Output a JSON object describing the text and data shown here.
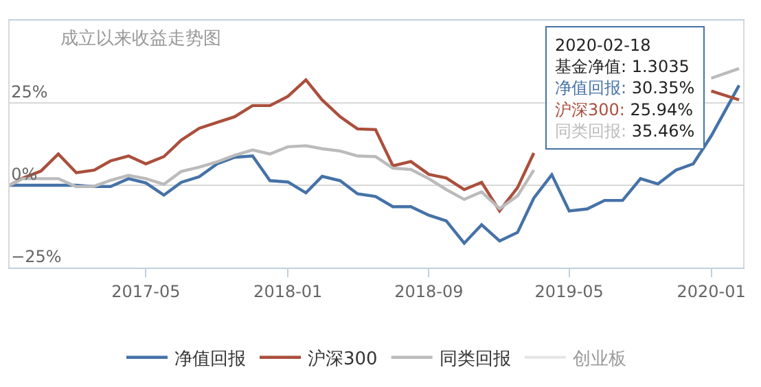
{
  "chart_data": {
    "type": "line",
    "title": "成立以来收益走势图",
    "x": [
      "2016-09-08",
      "2016-10-01",
      "2016-11-01",
      "2016-12-01",
      "2017-01-01",
      "2017-02-01",
      "2017-03-01",
      "2017-04-01",
      "2017-05-01",
      "2017-06-01",
      "2017-07-01",
      "2017-08-01",
      "2017-09-01",
      "2017-10-01",
      "2017-11-01",
      "2017-12-01",
      "2018-01-01",
      "2018-02-01",
      "2018-03-01",
      "2018-04-01",
      "2018-05-01",
      "2018-06-01",
      "2018-07-01",
      "2018-08-01",
      "2018-09-01",
      "2018-10-01",
      "2018-11-01",
      "2018-12-01",
      "2019-01-01",
      "2019-02-01",
      "2019-03-01",
      "2019-04-01",
      "2019-05-01",
      "2019-06-01",
      "2019-07-01",
      "2019-08-01",
      "2019-09-01",
      "2019-10-01",
      "2019-11-01",
      "2019-12-01",
      "2020-01-01",
      "2020-02-18"
    ],
    "series": [
      {
        "name": "净值回报",
        "color": "#4572a7",
        "values": [
          0,
          0,
          0,
          0,
          0,
          -0.4,
          -0.4,
          2,
          0.7,
          -3,
          0.9,
          2.6,
          6.5,
          8.5,
          8.9,
          1.4,
          1,
          -2.3,
          2.7,
          1.4,
          -2.6,
          -3.4,
          -6.5,
          -6.5,
          -9.1,
          -10.8,
          -17.6,
          -12,
          -16.9,
          -14.3,
          -3.9,
          3.2,
          -7.8,
          -7.2,
          -4.6,
          -4.6,
          2,
          0.4,
          4.6,
          6.5,
          15,
          30.35
        ]
      },
      {
        "name": "沪深300",
        "color": "#aa4f3c",
        "values": [
          0,
          2.2,
          4.3,
          9.5,
          3.8,
          4.6,
          7.4,
          8.9,
          6.5,
          8.7,
          13.7,
          17.3,
          19.1,
          20.8,
          24.2,
          24.2,
          27,
          32,
          25.9,
          20.8,
          17.1,
          16.9,
          5.9,
          7.2,
          3.3,
          2.2,
          -1.3,
          0.9,
          -7.8,
          -0.7,
          9.8,
          null,
          null,
          null,
          null,
          null,
          null,
          null,
          null,
          null,
          28.6,
          25.94
        ]
      },
      {
        "name": "同类回报",
        "color": "#bbbbbb",
        "values": [
          0,
          2,
          2,
          2,
          -0.4,
          -0.3,
          1.5,
          3,
          2,
          0.3,
          4.2,
          5.5,
          7.1,
          9.1,
          10.7,
          9.5,
          11.7,
          12,
          11.1,
          10.4,
          8.9,
          8.7,
          5.2,
          4.8,
          2,
          -1.3,
          -4.3,
          -2,
          -7.1,
          -3.2,
          4.6,
          null,
          null,
          null,
          null,
          null,
          null,
          null,
          null,
          null,
          32.5,
          35.46
        ]
      },
      {
        "name": "创业板",
        "color": "#cccccc",
        "values": [
          null,
          null,
          null,
          null,
          null,
          null,
          null,
          null,
          null,
          null,
          null,
          null,
          null,
          null,
          null,
          null,
          null,
          null,
          null,
          null,
          null,
          null,
          null,
          null,
          null,
          null,
          null,
          null,
          null,
          null,
          null,
          null,
          null,
          null,
          null,
          null,
          null,
          null,
          null,
          null,
          null,
          null
        ]
      }
    ],
    "xlim": [
      "2016-09-08",
      "2020-02-25"
    ],
    "xticks": [
      {
        "value": "2017-05-01",
        "label": "2017-05"
      },
      {
        "value": "2018-01-01",
        "label": "2018-01"
      },
      {
        "value": "2018-09-01",
        "label": "2018-09"
      },
      {
        "value": "2019-05-01",
        "label": "2019-05"
      },
      {
        "value": "2020-01-01",
        "label": "2020-01"
      }
    ],
    "ylim": [
      -25,
      50
    ],
    "yticks": [
      {
        "value": -25,
        "label": "−25%"
      },
      {
        "value": 0,
        "label": "0%"
      },
      {
        "value": 25,
        "label": "25%"
      },
      {
        "value": 50,
        "label": null
      }
    ],
    "grid": "y",
    "legend": "bottom",
    "annotations": [
      "2020-02-18",
      "基金净值: 1.3035",
      "净值回报: 30.35%",
      "沪深300: 25.94%",
      "同类回报: 35.46%"
    ]
  }
}
